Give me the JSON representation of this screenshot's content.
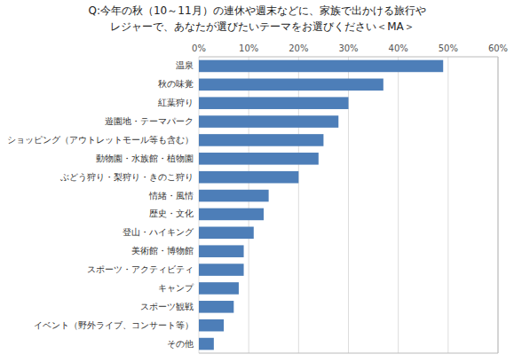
{
  "chart_data": {
    "type": "bar",
    "orientation": "horizontal",
    "title": "Q:今年の秋（10～11月）の連休や週末などに、家族で出かける旅行や\n　レジャーで、あなたが選びたいテーマをお選びください＜MA＞",
    "categories": [
      "その他",
      "イベント（野外ライブ、コンサート等）",
      "スポーツ観戦",
      "キャンプ",
      "スポーツ・アクティビティ",
      "美術館・博物館",
      "登山・ハイキング",
      "歴史・文化",
      "情緒・風情",
      "ぶどう狩り・梨狩り・きのこ狩り",
      "動物園・水族館・植物園",
      "ショッピング（アウトレットモール等も含む）",
      "遊園地・テーマパーク",
      "紅葉狩り",
      "秋の味覚",
      "温泉"
    ],
    "values": [
      3,
      5,
      7,
      8,
      9,
      9,
      11,
      13,
      14,
      20,
      24,
      25,
      28,
      30,
      37,
      49
    ],
    "color": "#4d7eb8",
    "xlim": [
      0,
      60
    ],
    "xticks": [
      {
        "value": 0,
        "label": "0%"
      },
      {
        "value": 10,
        "label": "10%"
      },
      {
        "value": 20,
        "label": "20%"
      },
      {
        "value": 30,
        "label": "30%"
      },
      {
        "value": 40,
        "label": "40%"
      },
      {
        "value": 50,
        "label": "50%"
      },
      {
        "value": 60,
        "label": "60%"
      }
    ],
    "grid": true
  }
}
